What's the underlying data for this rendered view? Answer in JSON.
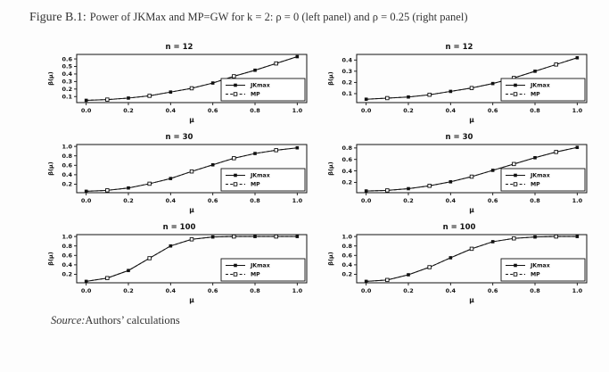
{
  "figure": {
    "label": "Figure B.1:",
    "caption": "Power of JKMax and MP=GW for k = 2: ρ = 0 (left panel) and ρ = 0.25 (right panel)"
  },
  "source": {
    "prefix": "Source:",
    "text": "Authors’ calculations"
  },
  "chart_data": {
    "type": "line",
    "layout": "3 rows x 2 columns",
    "xlabel": "μ",
    "ylabel": "β(μ)",
    "x": [
      0.0,
      0.1,
      0.2,
      0.3,
      0.4,
      0.5,
      0.6,
      0.7,
      0.8,
      0.9,
      1.0
    ],
    "xticks": [
      "0.0",
      "0.2",
      "0.4",
      "0.6",
      "0.8",
      "1.0"
    ],
    "grid": false,
    "legend_position": "lower-right-inside",
    "legend": [
      {
        "name": "JKmax",
        "line": "solid",
        "marker": "filled-square"
      },
      {
        "name": "MP",
        "line": "dashed",
        "marker": "open-square"
      }
    ],
    "panels": [
      {
        "id": "n12-left",
        "title": "n = 12",
        "column": "left",
        "rho": 0,
        "yticks": [
          0.1,
          0.2,
          0.3,
          0.4,
          0.5,
          0.6
        ],
        "ylim": [
          0.02,
          0.66
        ],
        "series": [
          {
            "name": "JKmax",
            "values": [
              0.05,
              0.06,
              0.08,
              0.11,
              0.16,
              0.21,
              0.28,
              0.37,
              0.45,
              0.54,
              0.63
            ]
          },
          {
            "name": "MP",
            "values": [
              0.05,
              0.06,
              0.08,
              0.11,
              0.16,
              0.21,
              0.28,
              0.37,
              0.45,
              0.54,
              0.63
            ]
          }
        ]
      },
      {
        "id": "n12-right",
        "title": "n = 12",
        "column": "right",
        "rho": 0.25,
        "yticks": [
          0.1,
          0.2,
          0.3,
          0.4
        ],
        "ylim": [
          0.02,
          0.45
        ],
        "series": [
          {
            "name": "JKmax",
            "values": [
              0.05,
              0.06,
              0.07,
              0.09,
              0.12,
              0.15,
              0.19,
              0.24,
              0.3,
              0.36,
              0.42
            ]
          },
          {
            "name": "MP",
            "values": [
              0.05,
              0.06,
              0.07,
              0.09,
              0.12,
              0.15,
              0.19,
              0.24,
              0.3,
              0.36,
              0.42
            ]
          }
        ]
      },
      {
        "id": "n30-left",
        "title": "n = 30",
        "column": "left",
        "rho": 0,
        "yticks": [
          0.2,
          0.4,
          0.6,
          0.8,
          1.0
        ],
        "ylim": [
          0.02,
          1.04
        ],
        "series": [
          {
            "name": "JKmax",
            "values": [
              0.05,
              0.07,
              0.12,
              0.21,
              0.32,
              0.47,
              0.61,
              0.75,
              0.85,
              0.92,
              0.97
            ]
          },
          {
            "name": "MP",
            "values": [
              0.05,
              0.07,
              0.12,
              0.21,
              0.32,
              0.47,
              0.61,
              0.75,
              0.85,
              0.92,
              0.97
            ]
          }
        ]
      },
      {
        "id": "n30-right",
        "title": "n = 30",
        "column": "right",
        "rho": 0.25,
        "yticks": [
          0.2,
          0.4,
          0.6,
          0.8
        ],
        "ylim": [
          0.02,
          0.86
        ],
        "series": [
          {
            "name": "JKmax",
            "values": [
              0.05,
              0.06,
              0.09,
              0.14,
              0.21,
              0.3,
              0.41,
              0.52,
              0.63,
              0.73,
              0.81
            ]
          },
          {
            "name": "MP",
            "values": [
              0.05,
              0.06,
              0.09,
              0.14,
              0.21,
              0.3,
              0.41,
              0.52,
              0.63,
              0.73,
              0.81
            ]
          }
        ]
      },
      {
        "id": "n100-left",
        "title": "n = 100",
        "column": "left",
        "rho": 0,
        "yticks": [
          0.2,
          0.4,
          0.6,
          0.8,
          1.0
        ],
        "ylim": [
          0.02,
          1.04
        ],
        "series": [
          {
            "name": "JKmax",
            "values": [
              0.05,
              0.12,
              0.28,
              0.54,
              0.8,
              0.94,
              0.99,
              1.0,
              1.0,
              1.0,
              1.0
            ]
          },
          {
            "name": "MP",
            "values": [
              0.05,
              0.12,
              0.28,
              0.54,
              0.8,
              0.94,
              0.99,
              1.0,
              1.0,
              1.0,
              1.0
            ]
          }
        ]
      },
      {
        "id": "n100-right",
        "title": "n = 100",
        "column": "right",
        "rho": 0.25,
        "yticks": [
          0.2,
          0.4,
          0.6,
          0.8,
          1.0
        ],
        "ylim": [
          0.02,
          1.04
        ],
        "series": [
          {
            "name": "JKmax",
            "values": [
              0.05,
              0.08,
              0.19,
              0.35,
              0.55,
              0.74,
              0.89,
              0.96,
              0.99,
              1.0,
              1.0
            ]
          },
          {
            "name": "MP",
            "values": [
              0.05,
              0.08,
              0.19,
              0.35,
              0.55,
              0.74,
              0.89,
              0.96,
              0.99,
              1.0,
              1.0
            ]
          }
        ]
      }
    ]
  }
}
